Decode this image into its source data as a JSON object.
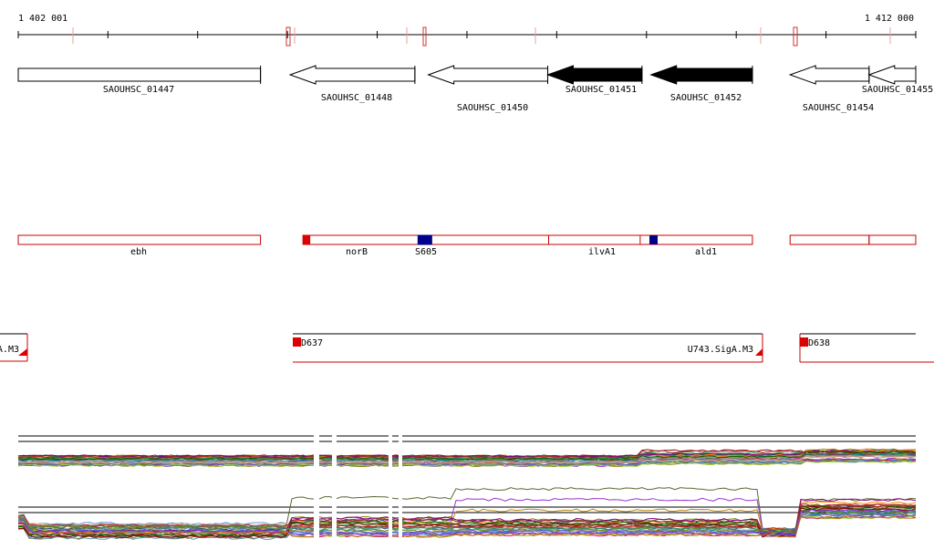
{
  "ruler": {
    "start_label": "1 402 001",
    "end_label": "1 412 000",
    "start_position": 1402001,
    "end_position": 1412000,
    "tick_step": 1000
  },
  "genes": [
    {
      "name": "SAOUHSC_01447",
      "start": 1402001,
      "end": 1404700,
      "strand": "+",
      "style": "outline"
    },
    {
      "name": "SAOUHSC_01448",
      "start": 1405030,
      "end": 1406420,
      "strand": "-",
      "style": "outline"
    },
    {
      "name": "SAOUHSC_01450",
      "start": 1406570,
      "end": 1407900,
      "strand": "-",
      "style": "outline"
    },
    {
      "name": "SAOUHSC_01451",
      "start": 1407900,
      "end": 1408950,
      "strand": "-",
      "style": "filled"
    },
    {
      "name": "SAOUHSC_01452",
      "start": 1409050,
      "end": 1410180,
      "strand": "-",
      "style": "filled"
    },
    {
      "name": "SAOUHSC_01454",
      "start": 1410600,
      "end": 1411480,
      "strand": "-",
      "style": "outline"
    },
    {
      "name": "SAOUHSC_01455",
      "start": 1411480,
      "end": 1412000,
      "strand": "-",
      "style": "outline"
    }
  ],
  "annotations": [
    {
      "name": "ebh",
      "start": 1402001,
      "end": 1404700
    },
    {
      "name": "norB",
      "start": 1405000,
      "end": 1406450,
      "start_marker": true
    },
    {
      "name": "S605",
      "start": 1406450,
      "end": 1406600,
      "type": "srna"
    },
    {
      "name": "ilvA1",
      "start": 1408950,
      "end": 1409010
    },
    {
      "name": "ald1",
      "start": 1409010,
      "end": 1410180
    },
    {
      "name": "",
      "start": 1410600,
      "end": 1411480
    },
    {
      "name": "",
      "start": 1411480,
      "end": 1412000
    }
  ],
  "transcription_units": [
    {
      "name": "A.M3",
      "start": 1401800,
      "end": 1402110,
      "marker": "right"
    },
    {
      "name": "D637",
      "start": 1405030,
      "end": 1410200,
      "marker": "left"
    },
    {
      "name": "U743.SigA.M3",
      "start": 1405030,
      "end": 1410200,
      "marker": "right"
    },
    {
      "name": "D638",
      "start": 1410600,
      "end": 1412250,
      "marker": "left"
    }
  ],
  "colors": {
    "annotation_outline": "#cc0000",
    "marker_red": "#dd0000",
    "srna_blue": "#00008b",
    "gene_filled": "#000000",
    "ruler_mark": "#e8a0a0"
  },
  "expression_series_count": 30
}
